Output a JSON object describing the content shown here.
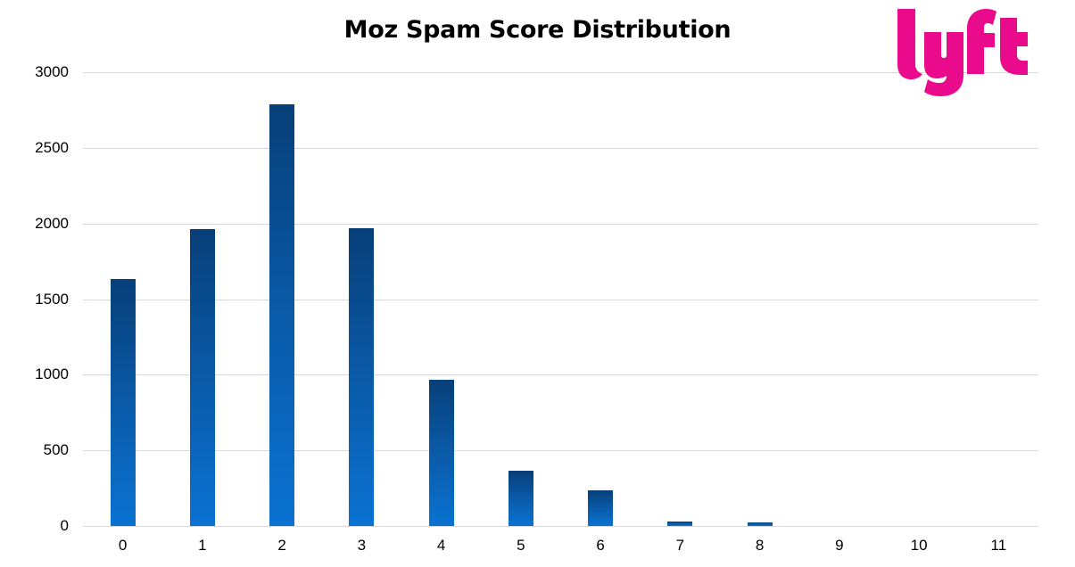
{
  "chart_data": {
    "type": "bar",
    "title": "Moz Spam Score Distribution",
    "xlabel": "",
    "ylabel": "",
    "categories": [
      "0",
      "1",
      "2",
      "3",
      "4",
      "5",
      "6",
      "7",
      "8",
      "9",
      "10",
      "11"
    ],
    "values": [
      1630,
      1960,
      2790,
      1970,
      965,
      365,
      235,
      30,
      25,
      0,
      0,
      0
    ],
    "ylim": [
      0,
      3000
    ],
    "yticks": [
      "0",
      "500",
      "1000",
      "1500",
      "2000",
      "2500",
      "3000"
    ],
    "grid": true,
    "legend": null,
    "bar_color_top": "#073f78",
    "bar_color_bottom": "#0a72d2"
  },
  "logo": {
    "text": "lyft",
    "color": "#ea0b8c"
  }
}
